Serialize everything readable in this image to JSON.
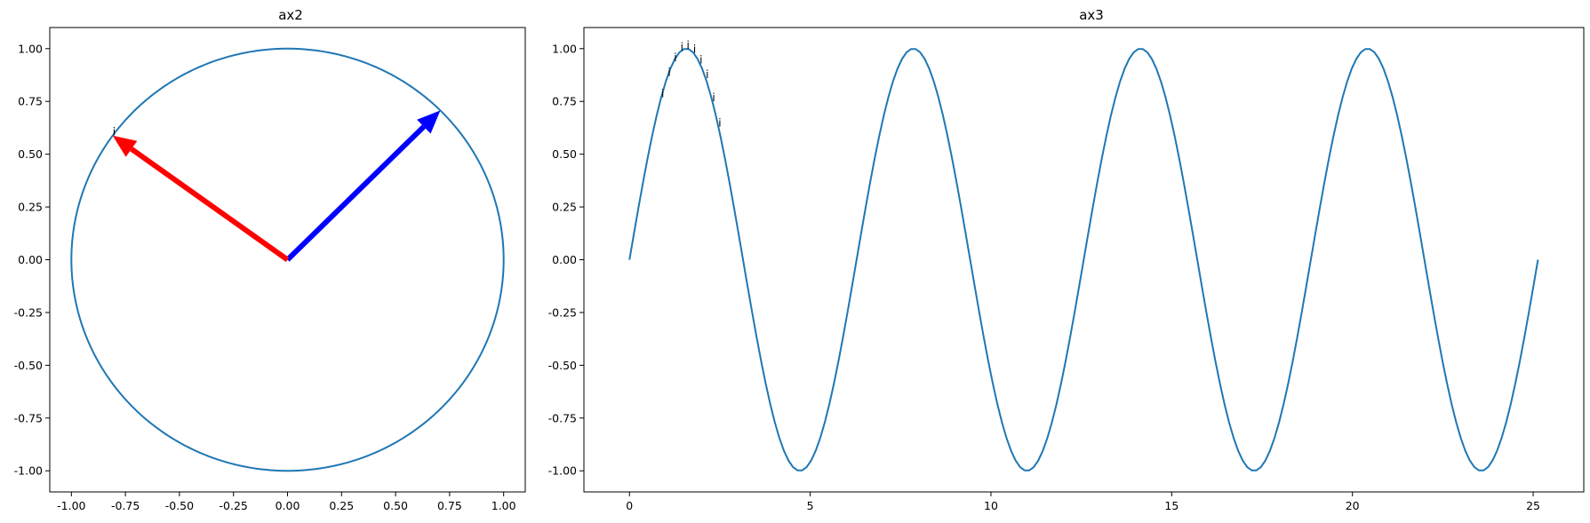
{
  "chart_data": [
    {
      "type": "line",
      "title": "ax2",
      "xlim": [
        -1.1,
        1.1
      ],
      "ylim": [
        -1.1,
        1.1
      ],
      "xticks": [
        "-1.00",
        "-0.75",
        "-0.50",
        "-0.25",
        "0.00",
        "0.25",
        "0.50",
        "0.75",
        "1.00"
      ],
      "yticks": [
        "-1.00",
        "-0.75",
        "-0.50",
        "-0.25",
        "0.00",
        "0.25",
        "0.50",
        "0.75",
        "1.00"
      ],
      "grid": false,
      "series": [
        {
          "kind": "circle",
          "center": [
            0,
            0
          ],
          "radius": 1.0,
          "color": "#1f77b4"
        }
      ],
      "arrows": [
        {
          "from": [
            0,
            0
          ],
          "to": [
            0.707,
            0.707
          ],
          "color": "#0000ff"
        },
        {
          "from": [
            0,
            0
          ],
          "to": [
            -0.809,
            0.588
          ],
          "color": "#ff0000"
        }
      ],
      "annotations": [
        {
          "text": "i",
          "x": -0.809,
          "y": 0.588
        }
      ]
    },
    {
      "type": "line",
      "title": "ax3",
      "xlim": [
        -1.26,
        26.4
      ],
      "ylim": [
        -1.1,
        1.1
      ],
      "xticks": [
        "0",
        "5",
        "10",
        "15",
        "20",
        "25"
      ],
      "yticks": [
        "-1.00",
        "-0.75",
        "-0.50",
        "-0.25",
        "0.00",
        "0.25",
        "0.50",
        "0.75",
        "1.00"
      ],
      "grid": false,
      "series": [
        {
          "kind": "function",
          "function": "sin(x)",
          "x_range": [
            0,
            25.1327
          ],
          "points": 201,
          "color": "#1f77b4"
        }
      ],
      "annotations": [
        {
          "text": "i",
          "x": 0.88,
          "y": 0.77
        },
        {
          "text": "i",
          "x": 1.06,
          "y": 0.87
        },
        {
          "text": "i",
          "x": 1.23,
          "y": 0.94
        },
        {
          "text": "i",
          "x": 1.41,
          "y": 0.99
        },
        {
          "text": "i",
          "x": 1.58,
          "y": 1.0
        },
        {
          "text": "i",
          "x": 1.76,
          "y": 0.98
        },
        {
          "text": "i",
          "x": 1.94,
          "y": 0.93
        },
        {
          "text": "i",
          "x": 2.11,
          "y": 0.86
        },
        {
          "text": "i",
          "x": 2.29,
          "y": 0.75
        },
        {
          "text": "i",
          "x": 2.46,
          "y": 0.63
        }
      ]
    }
  ]
}
